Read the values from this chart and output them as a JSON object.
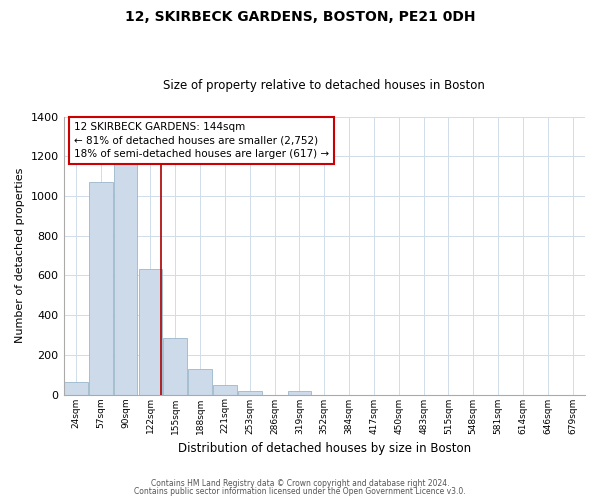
{
  "title": "12, SKIRBECK GARDENS, BOSTON, PE21 0DH",
  "subtitle": "Size of property relative to detached houses in Boston",
  "xlabel": "Distribution of detached houses by size in Boston",
  "ylabel": "Number of detached properties",
  "bar_color": "#ccdaea",
  "bar_edge_color": "#9ab8cc",
  "categories": [
    "24sqm",
    "57sqm",
    "90sqm",
    "122sqm",
    "155sqm",
    "188sqm",
    "221sqm",
    "253sqm",
    "286sqm",
    "319sqm",
    "352sqm",
    "384sqm",
    "417sqm",
    "450sqm",
    "483sqm",
    "515sqm",
    "548sqm",
    "581sqm",
    "614sqm",
    "646sqm",
    "679sqm"
  ],
  "values": [
    65,
    1070,
    1160,
    635,
    285,
    130,
    47,
    20,
    0,
    20,
    0,
    0,
    0,
    0,
    0,
    0,
    0,
    0,
    0,
    0,
    0
  ],
  "ylim": [
    0,
    1400
  ],
  "yticks": [
    0,
    200,
    400,
    600,
    800,
    1000,
    1200,
    1400
  ],
  "annotation_title": "12 SKIRBECK GARDENS: 144sqm",
  "annotation_line1": "← 81% of detached houses are smaller (2,752)",
  "annotation_line2": "18% of semi-detached houses are larger (617) →",
  "annotation_box_color": "#ffffff",
  "annotation_box_edge": "#cc0000",
  "marker_line_color": "#aa0000",
  "footnote1": "Contains HM Land Registry data © Crown copyright and database right 2024.",
  "footnote2": "Contains public sector information licensed under the Open Government Licence v3.0.",
  "bg_color": "#ffffff",
  "grid_color": "#d0dce8"
}
